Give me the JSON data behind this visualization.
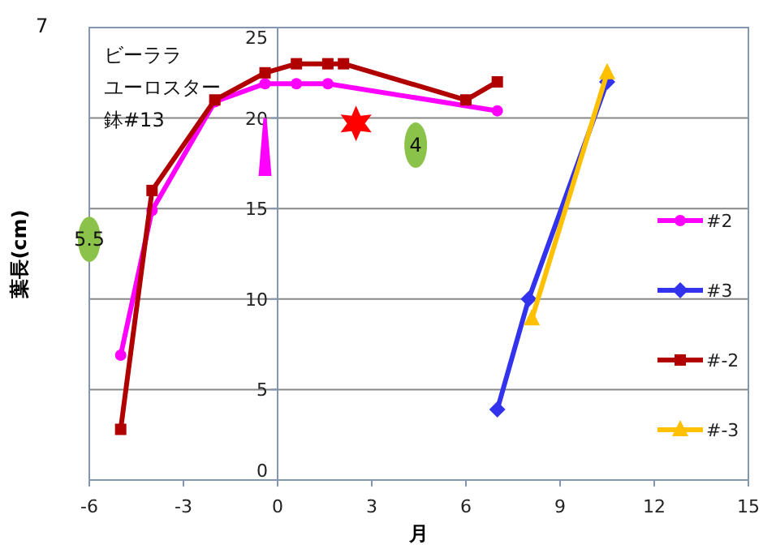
{
  "chart_data": {
    "type": "line",
    "title": "ビーララ",
    "subtitle": "ユーロスター",
    "xlabel": "月",
    "ylabel": "葉長(cm)",
    "xlim": [
      -6,
      15
    ],
    "xticks": [
      -6,
      -3,
      0,
      3,
      6,
      9,
      12,
      15
    ],
    "ylim": [
      0,
      25
    ],
    "yticks": [
      0,
      5,
      10,
      15,
      20,
      25
    ],
    "grid": "y",
    "legend": "right",
    "line_style": "solid",
    "annotations": [
      "7",
      "鉢#13",
      {
        "text": "5.5",
        "x": -6,
        "y": 13.3
      },
      {
        "text": "4",
        "x": 4.4,
        "y": 18.5
      }
    ],
    "series": [
      {
        "name": "#2",
        "color": "#ff00ff",
        "marker": "circle",
        "x": [
          -5,
          -4,
          -2,
          -0.4,
          0.6,
          1.6,
          7
        ],
        "values": [
          6.9,
          14.9,
          20.9,
          21.9,
          21.9,
          21.9,
          20.4
        ]
      },
      {
        "name": "#3",
        "color": "#3333ee",
        "marker": "diamond",
        "x": [
          7,
          8,
          10.5
        ],
        "values": [
          3.9,
          10.0,
          22.0
        ]
      },
      {
        "name": "#-2",
        "color": "#b00000",
        "marker": "square",
        "x": [
          -5,
          -4,
          -2,
          -0.4,
          0.6,
          1.6,
          2.1,
          6,
          7
        ],
        "values": [
          2.8,
          16.0,
          21.0,
          22.5,
          23.0,
          23.0,
          23.0,
          21.0,
          22.0
        ]
      },
      {
        "name": "#-3",
        "color": "#ffc000",
        "marker": "triangle",
        "x": [
          8.1,
          10.5
        ],
        "values": [
          8.9,
          22.5
        ]
      }
    ]
  }
}
